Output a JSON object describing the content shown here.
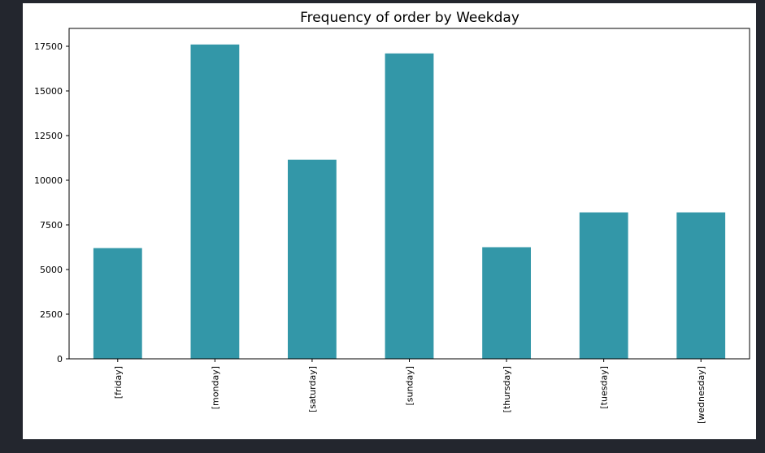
{
  "colors": {
    "page_background": "#23262e",
    "panel_background": "#ffffff",
    "bar": "#3397a8",
    "axis": "#000000"
  },
  "chart_data": {
    "type": "bar",
    "title": "Frequency of order by Weekday",
    "xlabel": "",
    "ylabel": "",
    "categories": [
      "[friday]",
      "[monday]",
      "[saturday]",
      "[sunday]",
      "[thursday]",
      "[tuesday]",
      "[wednesday]"
    ],
    "values": [
      6200,
      17600,
      11150,
      17100,
      6250,
      8200,
      8200
    ],
    "ylim": [
      0,
      18500
    ],
    "yticks": [
      0,
      2500,
      5000,
      7500,
      10000,
      12500,
      15000,
      17500
    ],
    "ytick_labels": [
      "0",
      "2500",
      "5000",
      "7500",
      "10000",
      "12500",
      "15000",
      "17500"
    ],
    "grid": false,
    "legend": "none"
  }
}
